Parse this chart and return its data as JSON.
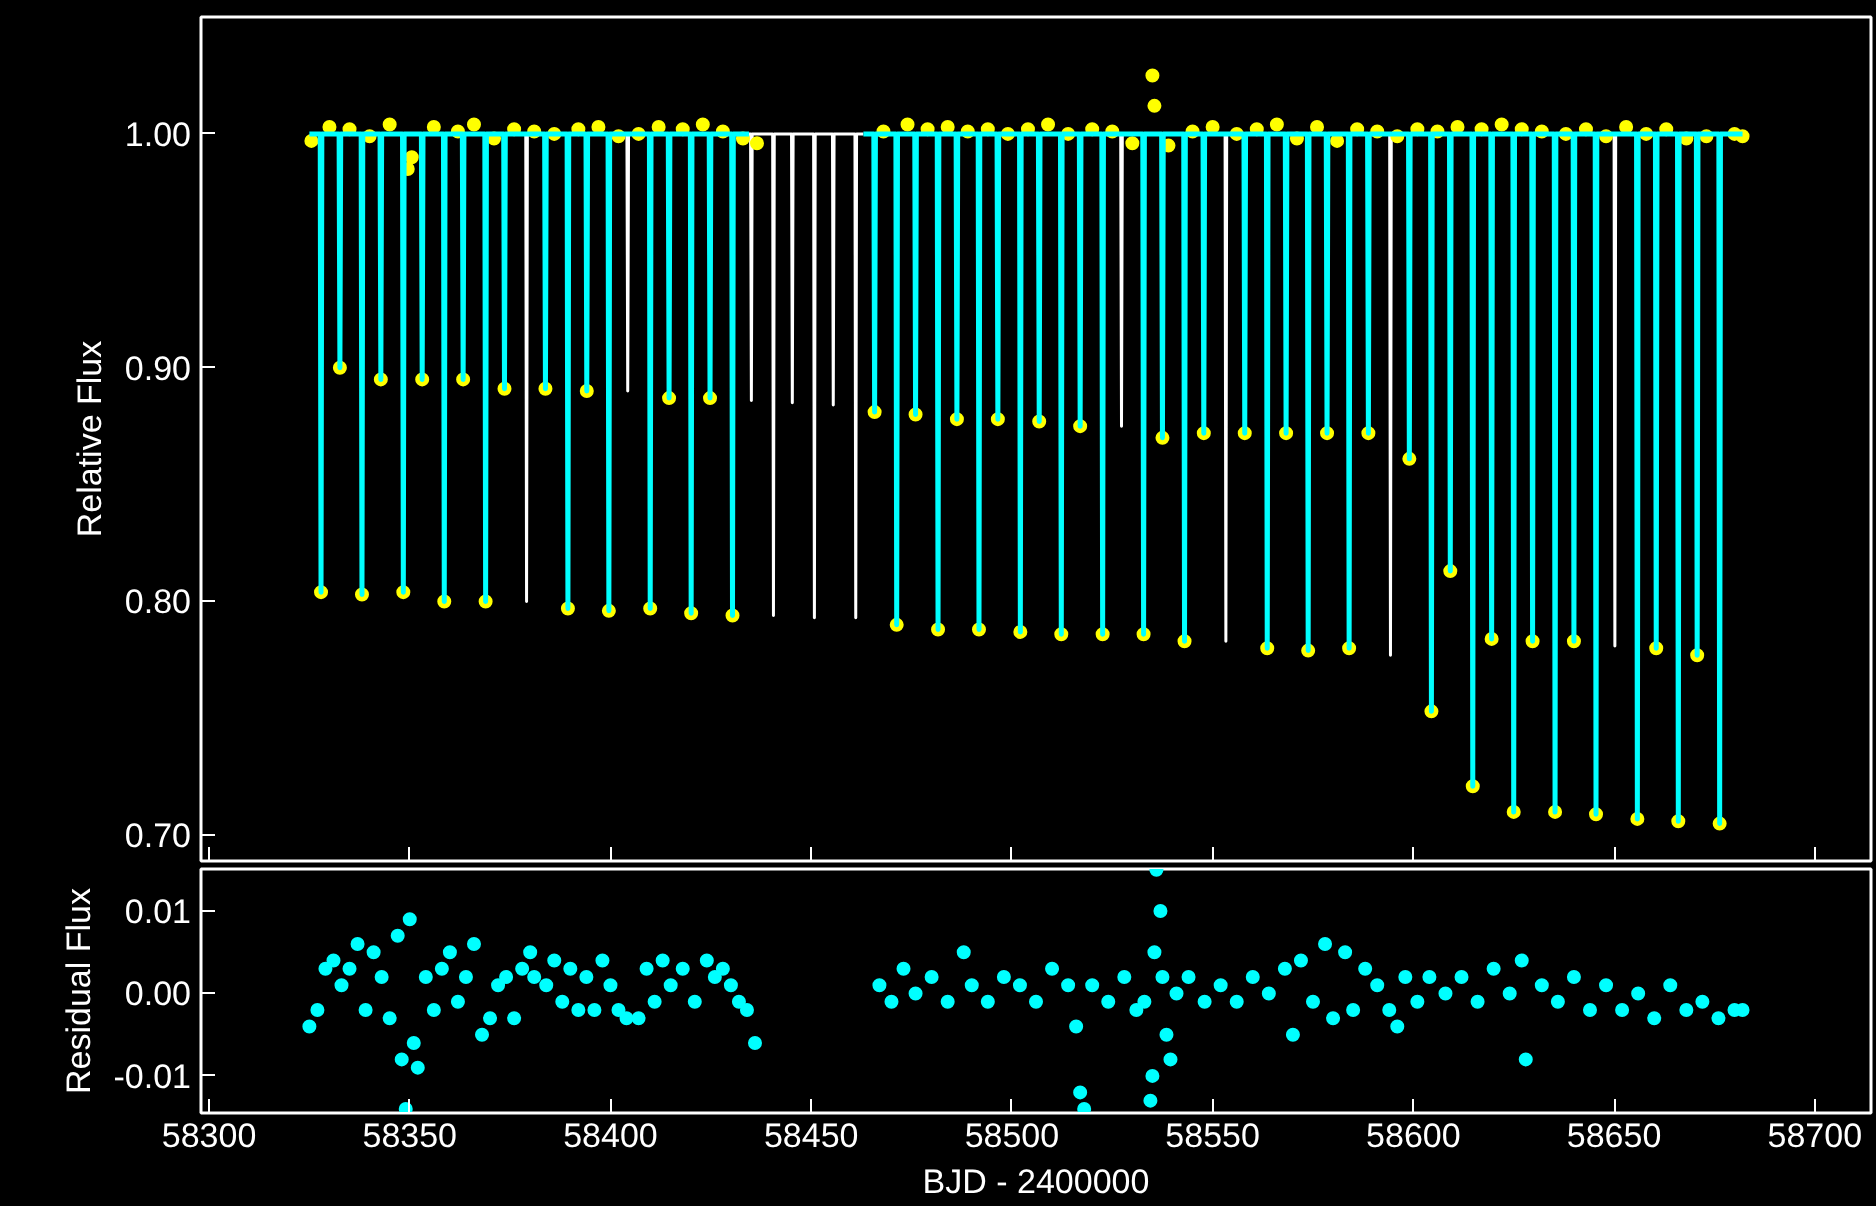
{
  "chart_data": [
    {
      "type": "scatter",
      "ylabel": "Relative Flux",
      "xlim": [
        58298,
        58714
      ],
      "ylim": [
        0.689,
        1.05
      ],
      "xticks": [
        58300,
        58350,
        58400,
        58450,
        58500,
        58550,
        58600,
        58650,
        58700
      ],
      "yticks": [
        {
          "value": 0.7,
          "label": "0.70"
        },
        {
          "value": 0.8,
          "label": "0.80"
        },
        {
          "value": 0.9,
          "label": "0.90"
        },
        {
          "value": 1.0,
          "label": "1.00"
        }
      ],
      "tick_labels": "y",
      "series": [
        {
          "type": "line",
          "color": "#ffffff",
          "x": [
            58378.9,
            58379.1,
            58379.3,
            null,
            58404.1,
            58404.3,
            58404.5,
            null,
            58434.5,
            58434.9,
            58435.1,
            58435.3,
            58440.4,
            58440.6,
            58440.8,
            58445.1,
            58445.3,
            58445.5,
            58450.6,
            58450.8,
            58451.0,
            58455.3,
            58455.5,
            58455.7,
            58460.9,
            58461.1,
            58461.3,
            58463.0,
            null,
            58527.1,
            58527.3,
            58527.5,
            null,
            58553.1,
            58553.3,
            58553.5,
            null,
            58594.1,
            58594.3,
            58594.5,
            null,
            58650.0,
            58650.2,
            58650.4
          ],
          "values": [
            1.0,
            0.8,
            1.0,
            null,
            1.0,
            0.89,
            1.0,
            null,
            1.0,
            1.0,
            0.886,
            1.0,
            1.0,
            0.794,
            1.0,
            1.0,
            0.885,
            1.0,
            1.0,
            0.793,
            1.0,
            1.0,
            0.884,
            1.0,
            1.0,
            0.793,
            1.0,
            1.0,
            null,
            1.0,
            0.875,
            1.0,
            null,
            1.0,
            0.783,
            1.0,
            null,
            1.0,
            0.777,
            1.0,
            null,
            1.0,
            0.781,
            1.0
          ]
        },
        {
          "marker": "circle",
          "color": "#ffff00",
          "x": [
            58325.5,
            58330,
            58335,
            58340,
            58345,
            58349.5,
            58350.5,
            58356,
            58362,
            58366,
            58371,
            58376,
            58381,
            58386,
            58392,
            58397,
            58402,
            58407,
            58412,
            58418,
            58423,
            58428,
            58433,
            58436.5,
            58468,
            58474,
            58479,
            58484,
            58489,
            58494,
            58499,
            58504,
            58509,
            58514,
            58520,
            58525,
            58530,
            58535,
            58535.5,
            58539,
            58545,
            58550,
            58556,
            58561,
            58566,
            58571,
            58576,
            58581,
            58586,
            58591,
            58596,
            58601,
            58606,
            58611,
            58617,
            58622,
            58627,
            58632,
            58638,
            58643,
            58648,
            58653,
            58658,
            58663,
            58668,
            58673,
            58680,
            58682,
            58327.9,
            58332.6,
            58338.1,
            58342.8,
            58348.4,
            58353.1,
            58358.6,
            58363.3,
            58368.9,
            58373.6,
            58383.8,
            58389.4,
            58394.1,
            58399.6,
            58409.9,
            58414.6,
            58420.1,
            58424.8,
            58430.4,
            58465.8,
            58471.3,
            58476.0,
            58481.6,
            58486.3,
            58491.8,
            58496.5,
            58502.1,
            58506.8,
            58512.3,
            58517.0,
            58522.6,
            58532.8,
            58537.5,
            58543.0,
            58547.8,
            58558.0,
            58563.6,
            58568.3,
            58573.8,
            58578.5,
            58584.0,
            58588.8,
            58599.0,
            58604.5,
            58609.2,
            58614.8,
            58619.5,
            58625.0,
            58629.7,
            58635.3,
            58640.0,
            58645.5,
            58655.8,
            58660.5,
            58666.0,
            58670.7,
            58676.3
          ],
          "values": [
            0.997,
            1.003,
            1.002,
            0.999,
            1.004,
            0.985,
            0.99,
            1.003,
            1.001,
            1.004,
            0.998,
            1.002,
            1.001,
            1.0,
            1.002,
            1.003,
            0.999,
            1.0,
            1.003,
            1.002,
            1.004,
            1.001,
            0.998,
            0.996,
            1.001,
            1.004,
            1.002,
            1.003,
            1.001,
            1.002,
            1.0,
            1.002,
            1.004,
            1.0,
            1.002,
            1.001,
            0.996,
            1.025,
            1.012,
            0.995,
            1.001,
            1.003,
            1.0,
            1.002,
            1.004,
            0.998,
            1.003,
            0.997,
            1.002,
            1.001,
            0.999,
            1.002,
            1.001,
            1.003,
            1.002,
            1.004,
            1.002,
            1.001,
            1.0,
            1.002,
            0.999,
            1.003,
            1.0,
            1.002,
            0.998,
            0.999,
            1.0,
            0.999,
            0.804,
            0.9,
            0.803,
            0.895,
            0.804,
            0.895,
            0.8,
            0.895,
            0.8,
            0.891,
            0.891,
            0.797,
            0.89,
            0.796,
            0.797,
            0.887,
            0.795,
            0.887,
            0.794,
            0.881,
            0.79,
            0.88,
            0.788,
            0.878,
            0.788,
            0.878,
            0.787,
            0.877,
            0.786,
            0.875,
            0.786,
            0.786,
            0.87,
            0.783,
            0.872,
            0.872,
            0.78,
            0.872,
            0.779,
            0.872,
            0.78,
            0.872,
            0.861,
            0.753,
            0.813,
            0.721,
            0.784,
            0.71,
            0.783,
            0.71,
            0.783,
            0.709,
            0.707,
            0.78,
            0.706,
            0.777,
            0.705
          ]
        },
        {
          "type": "line",
          "color": "#00ffff",
          "x": [
            58325,
            58327.7,
            58327.9,
            58328.1,
            58332.4,
            58332.6,
            58332.8,
            58337.9,
            58338.1,
            58338.3,
            58342.6,
            58342.8,
            58343.0,
            58348.2,
            58348.4,
            58348.6,
            58352.9,
            58353.1,
            58353.3,
            58358.4,
            58358.6,
            58358.8,
            58363.1,
            58363.3,
            58363.5,
            58368.7,
            58368.9,
            58369.1,
            58373.4,
            58373.6,
            58373.8,
            58383.6,
            58383.8,
            58384.0,
            58389.2,
            58389.4,
            58389.6,
            58393.9,
            58394.1,
            58394.3,
            58399.4,
            58399.6,
            58399.8,
            58409.7,
            58409.9,
            58410.1,
            58414.4,
            58414.6,
            58414.8,
            58419.9,
            58420.1,
            58420.3,
            58424.6,
            58424.8,
            58425.0,
            58430.2,
            58430.4,
            58430.6,
            58434.5,
            null,
            58463.0,
            58465.6,
            58465.8,
            58466.0,
            58471.1,
            58471.3,
            58471.5,
            58475.8,
            58476.0,
            58476.2,
            58481.4,
            58481.6,
            58481.8,
            58486.1,
            58486.3,
            58486.5,
            58491.6,
            58491.8,
            58492.0,
            58496.3,
            58496.5,
            58496.7,
            58501.9,
            58502.1,
            58502.3,
            58506.6,
            58506.8,
            58507.0,
            58512.1,
            58512.3,
            58512.5,
            58516.8,
            58517.0,
            58517.2,
            58522.4,
            58522.6,
            58522.8,
            58532.6,
            58532.8,
            58533.0,
            58537.3,
            58537.5,
            58537.7,
            58542.8,
            58543.0,
            58543.2,
            58547.6,
            58547.8,
            58548.0,
            58557.8,
            58558.0,
            58558.2,
            58563.4,
            58563.6,
            58563.8,
            58568.1,
            58568.3,
            58568.5,
            58573.6,
            58573.8,
            58574.0,
            58578.3,
            58578.5,
            58578.7,
            58583.8,
            58584.0,
            58584.2,
            58588.6,
            58588.8,
            58589.0,
            58598.8,
            58599.0,
            58599.2,
            58604.3,
            58604.5,
            58604.7,
            58609.0,
            58609.2,
            58609.4,
            58614.6,
            58614.8,
            58615.0,
            58619.3,
            58619.5,
            58619.7,
            58624.8,
            58625.0,
            58625.2,
            58629.5,
            58629.7,
            58629.9,
            58635.1,
            58635.3,
            58635.5,
            58639.8,
            58640.0,
            58640.2,
            58645.3,
            58645.5,
            58645.7,
            58655.6,
            58655.8,
            58656.0,
            58660.3,
            58660.5,
            58660.7,
            58665.8,
            58666.0,
            58666.2,
            58670.5,
            58670.7,
            58670.9,
            58676.1,
            58676.3,
            58676.5,
            58682
          ],
          "values": [
            1.0,
            1.0,
            0.804,
            1.0,
            1.0,
            0.9,
            1.0,
            1.0,
            0.803,
            1.0,
            1.0,
            0.895,
            1.0,
            1.0,
            0.804,
            1.0,
            1.0,
            0.895,
            1.0,
            1.0,
            0.8,
            1.0,
            1.0,
            0.895,
            1.0,
            1.0,
            0.8,
            1.0,
            1.0,
            0.891,
            1.0,
            1.0,
            0.891,
            1.0,
            1.0,
            0.797,
            1.0,
            1.0,
            0.89,
            1.0,
            1.0,
            0.796,
            1.0,
            1.0,
            0.797,
            1.0,
            1.0,
            0.887,
            1.0,
            1.0,
            0.795,
            1.0,
            1.0,
            0.887,
            1.0,
            1.0,
            0.794,
            1.0,
            1.0,
            null,
            1.0,
            1.0,
            0.881,
            1.0,
            1.0,
            0.79,
            1.0,
            1.0,
            0.88,
            1.0,
            1.0,
            0.788,
            1.0,
            1.0,
            0.878,
            1.0,
            1.0,
            0.788,
            1.0,
            1.0,
            0.878,
            1.0,
            1.0,
            0.787,
            1.0,
            1.0,
            0.877,
            1.0,
            1.0,
            0.786,
            1.0,
            1.0,
            0.875,
            1.0,
            1.0,
            0.786,
            1.0,
            1.0,
            0.786,
            1.0,
            1.0,
            0.87,
            1.0,
            1.0,
            0.783,
            1.0,
            1.0,
            0.872,
            1.0,
            1.0,
            0.872,
            1.0,
            1.0,
            0.78,
            1.0,
            1.0,
            0.872,
            1.0,
            1.0,
            0.779,
            1.0,
            1.0,
            0.872,
            1.0,
            1.0,
            0.78,
            1.0,
            1.0,
            0.872,
            1.0,
            1.0,
            0.861,
            1.0,
            1.0,
            0.753,
            1.0,
            1.0,
            0.813,
            1.0,
            1.0,
            0.721,
            1.0,
            1.0,
            0.784,
            1.0,
            1.0,
            0.71,
            1.0,
            1.0,
            0.783,
            1.0,
            1.0,
            0.71,
            1.0,
            1.0,
            0.783,
            1.0,
            1.0,
            0.709,
            1.0,
            1.0,
            0.707,
            1.0,
            1.0,
            0.78,
            1.0,
            1.0,
            0.706,
            1.0,
            1.0,
            0.777,
            1.0,
            1.0,
            0.705,
            1.0,
            1.0
          ]
        }
      ]
    },
    {
      "type": "scatter",
      "ylabel": "Residual Flux",
      "xlabel": "BJD - 2400000",
      "xlim": [
        58298,
        58714
      ],
      "ylim": [
        -0.0145,
        0.0151
      ],
      "xticks": [
        58300,
        58350,
        58400,
        58450,
        58500,
        58550,
        58600,
        58650,
        58700
      ],
      "yticks": [
        {
          "value": -0.01,
          "label": "-0.01"
        },
        {
          "value": 0.0,
          "label": "0.00"
        },
        {
          "value": 0.01,
          "label": "0.01"
        }
      ],
      "series": [
        {
          "marker": "circle",
          "color": "#00ffff",
          "x": [
            58325,
            58327,
            58329,
            58331,
            58333,
            58335,
            58337,
            58339,
            58341,
            58343,
            58345,
            58347,
            58348,
            58349,
            58350,
            58351,
            58352,
            58354,
            58356,
            58358,
            58360,
            58362,
            58364,
            58366,
            58368,
            58370,
            58372,
            58374,
            58376,
            58378,
            58380,
            58381,
            58384,
            58386,
            58388,
            58390,
            58392,
            58394,
            58396,
            58398,
            58400,
            58402,
            58404,
            58407,
            58409,
            58411,
            58413,
            58415,
            58418,
            58421,
            58424,
            58426,
            58428,
            58430,
            58432,
            58434,
            58436,
            58467,
            58470,
            58473,
            58476,
            58480,
            58484,
            58488,
            58490,
            58494,
            58498,
            58502,
            58506,
            58510,
            58514,
            58516,
            58517,
            58518,
            58520,
            58524,
            58528,
            58531,
            58533,
            58534.5,
            58535,
            58535.5,
            58536,
            58537,
            58537.5,
            58538.5,
            58539.5,
            58541,
            58544,
            58548,
            58552,
            58556,
            58560,
            58564,
            58568,
            58570,
            58572,
            58575,
            58578,
            58580,
            58583,
            58585,
            58588,
            58591,
            58594,
            58596,
            58598,
            58601,
            58604,
            58608,
            58612,
            58616,
            58620,
            58624,
            58627,
            58628,
            58632,
            58636,
            58640,
            58644,
            58648,
            58652,
            58656,
            58660,
            58664,
            58668,
            58672,
            58676,
            58680,
            58682
          ],
          "values": [
            -0.004,
            -0.002,
            0.003,
            0.004,
            0.001,
            0.003,
            0.006,
            -0.002,
            0.005,
            0.002,
            -0.003,
            0.007,
            -0.008,
            -0.014,
            0.009,
            -0.006,
            -0.009,
            0.002,
            -0.002,
            0.003,
            0.005,
            -0.001,
            0.002,
            0.006,
            -0.005,
            -0.003,
            0.001,
            0.002,
            -0.003,
            0.003,
            0.005,
            0.002,
            0.001,
            0.004,
            -0.001,
            0.003,
            -0.002,
            0.002,
            -0.002,
            0.004,
            0.001,
            -0.002,
            -0.003,
            -0.003,
            0.003,
            -0.001,
            0.004,
            0.001,
            0.003,
            -0.001,
            0.004,
            0.002,
            0.003,
            0.001,
            -0.001,
            -0.002,
            -0.006,
            0.001,
            -0.001,
            0.003,
            0.0,
            0.002,
            -0.001,
            0.005,
            0.001,
            -0.001,
            0.002,
            0.001,
            -0.001,
            0.003,
            0.001,
            -0.004,
            -0.012,
            -0.014,
            0.001,
            -0.001,
            0.002,
            -0.002,
            -0.001,
            -0.013,
            -0.01,
            0.005,
            0.015,
            0.01,
            0.002,
            -0.005,
            -0.008,
            0.0,
            0.002,
            -0.001,
            0.001,
            -0.001,
            0.002,
            0.0,
            0.003,
            -0.005,
            0.004,
            -0.001,
            0.006,
            -0.003,
            0.005,
            -0.002,
            0.003,
            0.001,
            -0.002,
            -0.004,
            0.002,
            -0.001,
            0.002,
            0.0,
            0.002,
            -0.001,
            0.003,
            0.0,
            0.004,
            -0.008,
            0.001,
            -0.001,
            0.002,
            -0.002,
            0.001,
            -0.002,
            0.0,
            -0.003,
            0.001,
            -0.002,
            -0.001,
            -0.003,
            -0.002,
            -0.002
          ]
        }
      ]
    }
  ]
}
